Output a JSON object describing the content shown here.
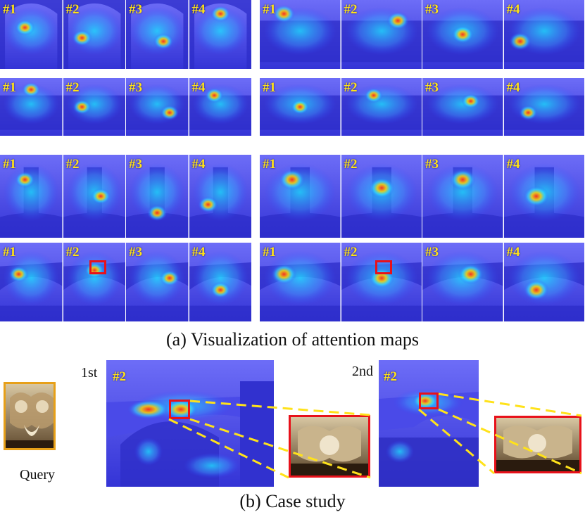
{
  "figure": {
    "caption_a": "(a) Visualization of attention maps",
    "caption_b": "(b) Case study",
    "labels": [
      "#1",
      "#2",
      "#3",
      "#4"
    ],
    "rank_1": "1st",
    "rank_2": "2nd",
    "case_label": "#2",
    "query_label": "Query"
  },
  "colors": {
    "attention_base": "#3c3cf0",
    "hotspot": "#e33a2a",
    "label_text": "#ffe21a",
    "highlight_box": "#e8111a",
    "zoom_line": "#ffe21a",
    "query_frame": "#e7a018"
  }
}
